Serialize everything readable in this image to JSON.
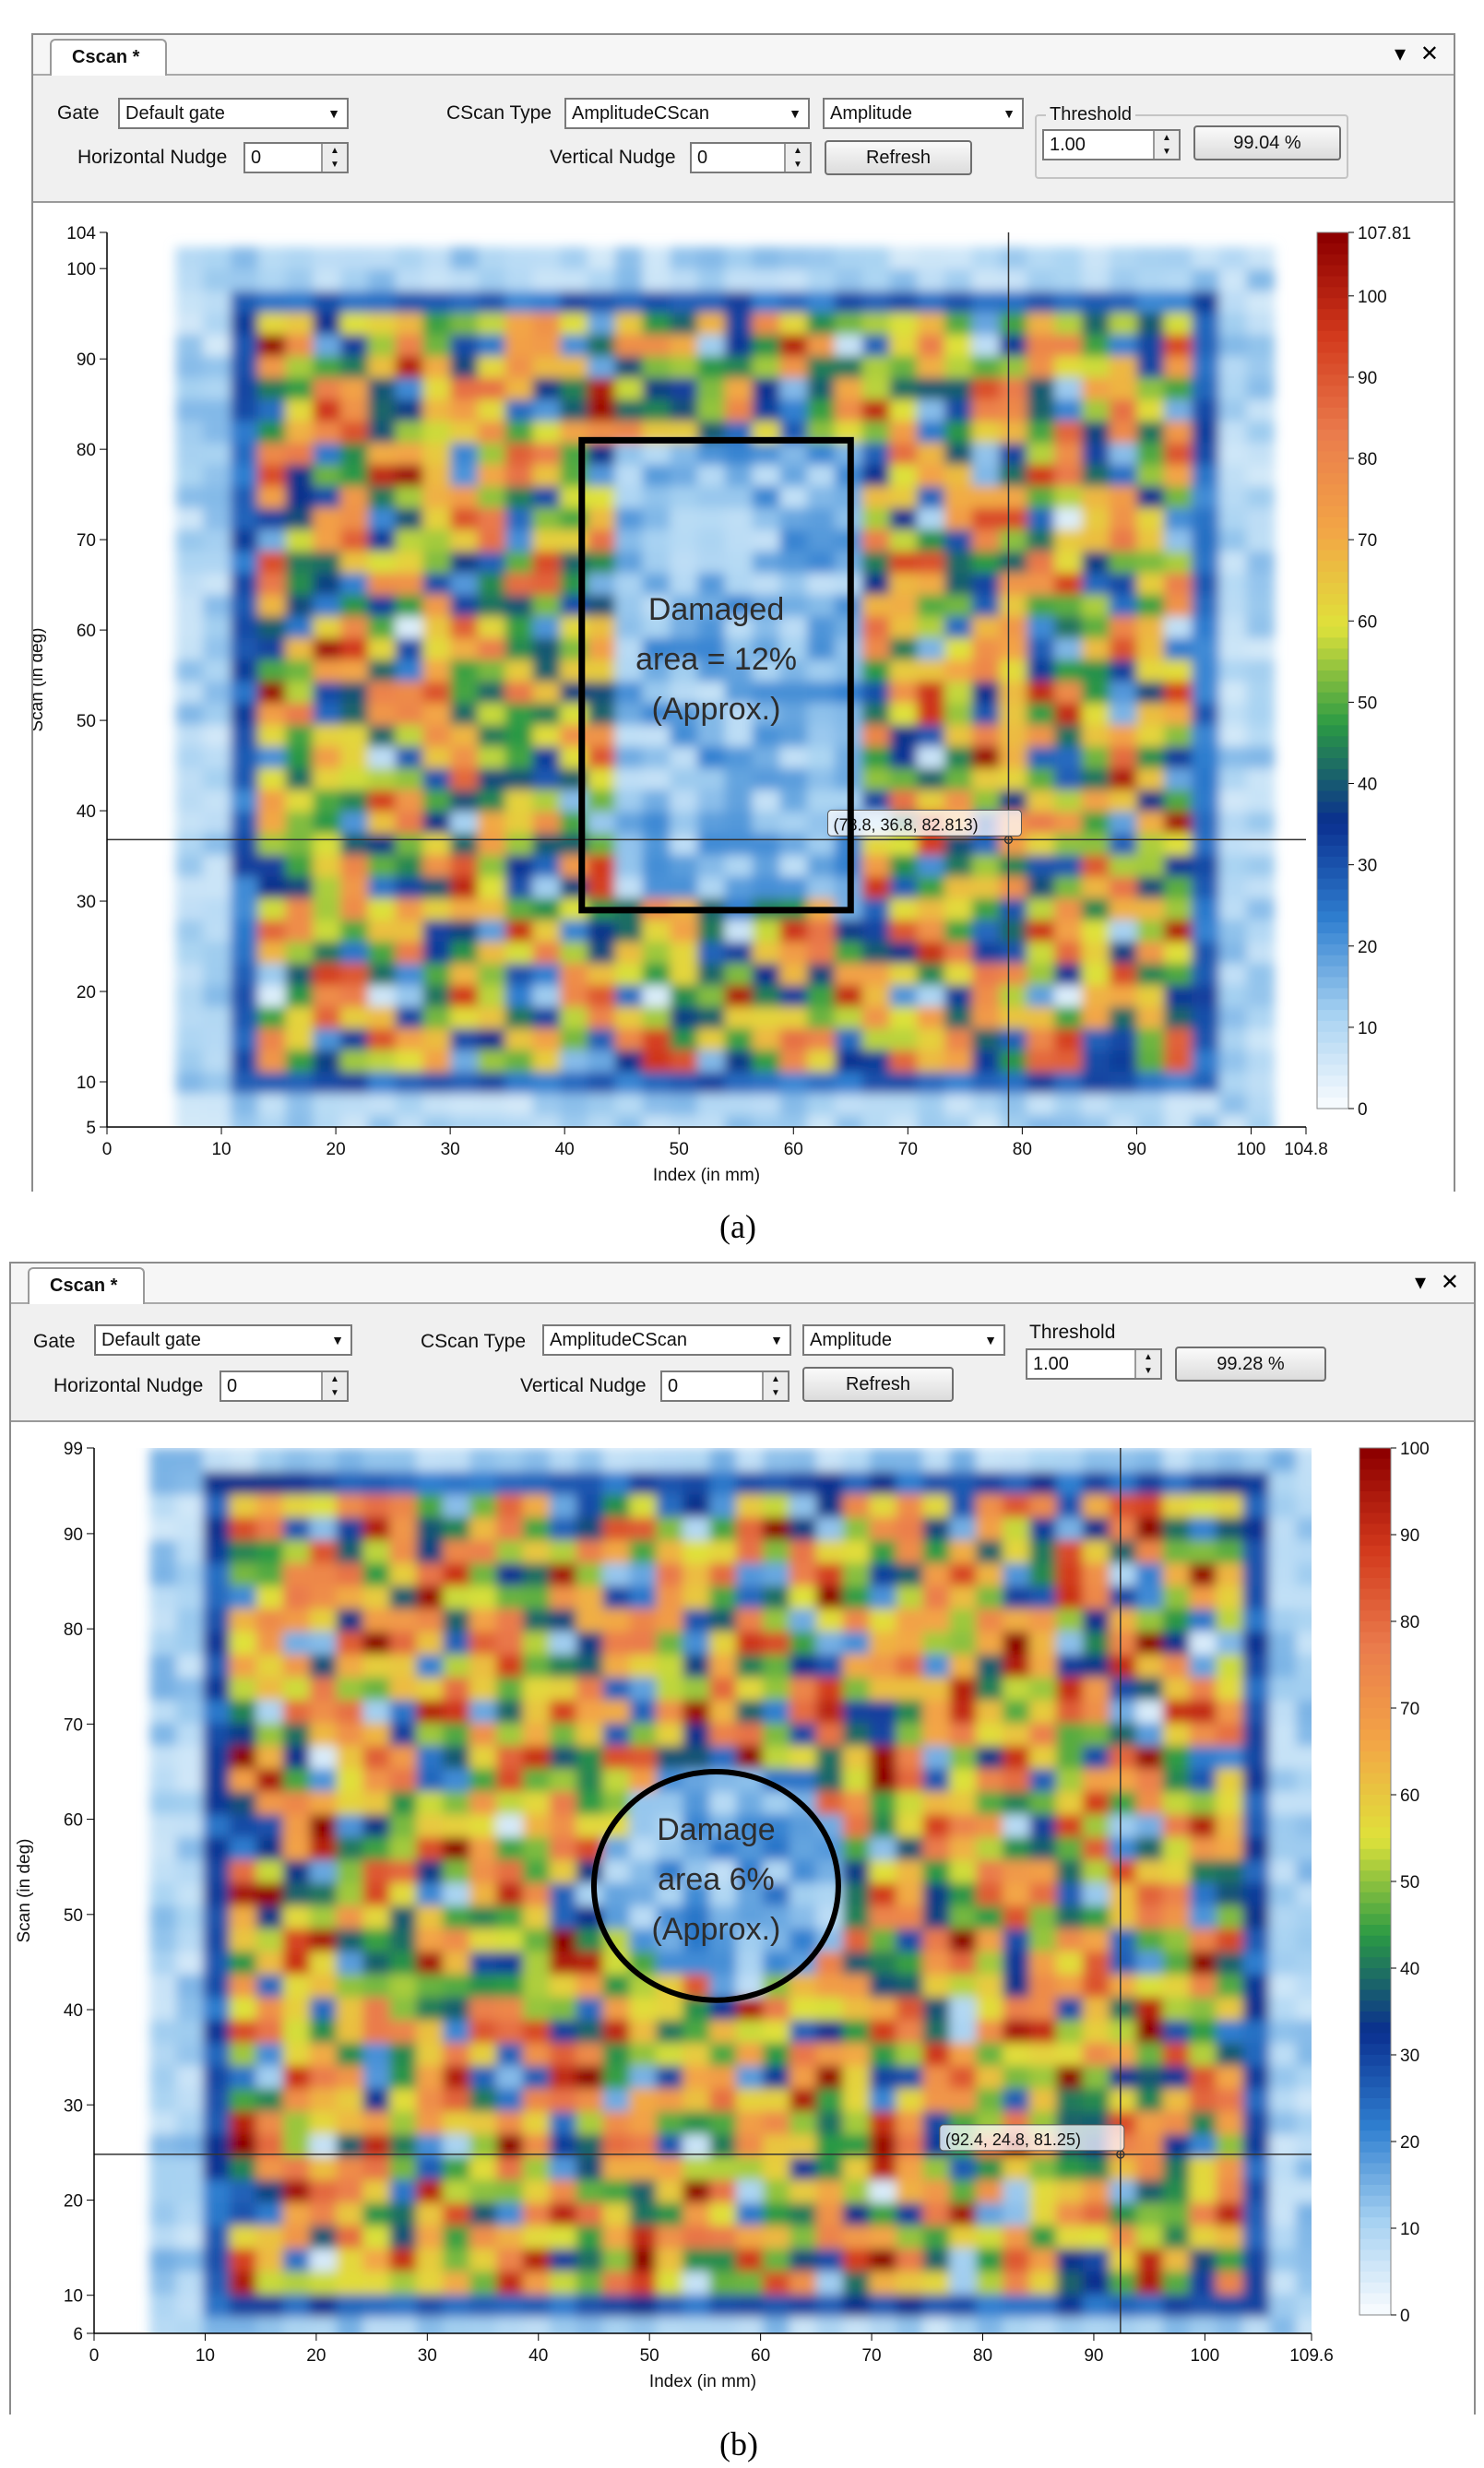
{
  "panels": [
    {
      "tab_title": "Cscan *",
      "gate_label": "Gate",
      "gate_value": "Default gate",
      "cscan_type_label": "CScan Type",
      "cscan_type_value": "AmplitudeCScan",
      "mode_value": "Amplitude",
      "threshold_label": "Threshold",
      "threshold_value": "1.00",
      "threshold_percent": "99.04 %",
      "hnudge_label": "Horizontal Nudge",
      "hnudge_value": "0",
      "vnudge_label": "Vertical Nudge",
      "vnudge_value": "0",
      "refresh_label": "Refresh",
      "x_axis_label": "Index (in mm)",
      "y_axis_label": "Scan (in deg)",
      "cursor_readout": "(78.8, 36.8, 82.813)",
      "annotation_lines": [
        "Damaged",
        "area = 12%",
        "(Approx.)"
      ],
      "caption": "(a)"
    },
    {
      "tab_title": "Cscan *",
      "gate_label": "Gate",
      "gate_value": "Default gate",
      "cscan_type_label": "CScan Type",
      "cscan_type_value": "AmplitudeCScan",
      "mode_value": "Amplitude",
      "threshold_label": "Threshold",
      "threshold_value": "1.00",
      "threshold_percent": "99.28 %",
      "hnudge_label": "Horizontal Nudge",
      "hnudge_value": "0",
      "vnudge_label": "Vertical Nudge",
      "vnudge_value": "0",
      "refresh_label": "Refresh",
      "x_axis_label": "Index (in mm)",
      "y_axis_label": "Scan (in deg)",
      "cursor_readout": "(92.4, 24.8, 81.25)",
      "annotation_lines": [
        "Damage",
        "area 6%",
        "(Approx.)"
      ],
      "caption": "(b)"
    }
  ],
  "window_controls": {
    "dropdown_glyph": "▾",
    "close_glyph": "✕"
  },
  "icons": {
    "combo_arrow": "chevron-down-icon",
    "spin": "spin-arrows-icon",
    "close": "close-icon"
  },
  "colorscale": [
    "#ffffff",
    "#a9d3f2",
    "#2f7fd0",
    "#0a2f8f",
    "#2b9a44",
    "#dfe23a",
    "#f3a546",
    "#ea7b4c",
    "#d2391c",
    "#8e0000"
  ],
  "chart_data": [
    {
      "type": "heatmap",
      "xlabel": "Index (in mm)",
      "ylabel": "Scan (in deg)",
      "xlim": [
        0,
        104.8
      ],
      "ylim": [
        5,
        104
      ],
      "x_ticks": [
        0,
        10,
        20,
        30,
        40,
        50,
        60,
        70,
        80,
        90,
        100,
        104.8
      ],
      "y_ticks": [
        5,
        10,
        20,
        30,
        40,
        50,
        60,
        70,
        80,
        90,
        100,
        104
      ],
      "colorbar": {
        "min": 0,
        "max": 107.81,
        "ticks": [
          0,
          10,
          20,
          30,
          40,
          50,
          60,
          70,
          80,
          90,
          100,
          107.81
        ]
      },
      "specimen_extent": {
        "x": [
          10,
          96
        ],
        "y": [
          8,
          97
        ]
      },
      "damage_region": {
        "shape": "rectangle",
        "x": [
          41.5,
          65
        ],
        "y": [
          29,
          81
        ]
      },
      "cursor": {
        "x": 78.8,
        "y": 36.8,
        "value": 82.813
      }
    },
    {
      "type": "heatmap",
      "xlabel": "Index (in mm)",
      "ylabel": "Scan (in deg)",
      "xlim": [
        0,
        109.6
      ],
      "ylim": [
        6,
        99
      ],
      "x_ticks": [
        0,
        10,
        20,
        30,
        40,
        50,
        60,
        70,
        80,
        90,
        100,
        109.6
      ],
      "y_ticks": [
        6,
        10,
        20,
        30,
        40,
        50,
        60,
        70,
        80,
        90,
        99
      ],
      "colorbar": {
        "min": 0,
        "max": 100,
        "ticks": [
          0,
          10,
          20,
          30,
          40,
          50,
          60,
          70,
          80,
          90,
          100
        ]
      },
      "specimen_extent": {
        "x": [
          9,
          105
        ],
        "y": [
          7,
          95
        ]
      },
      "damage_region": {
        "shape": "circle",
        "center": [
          56,
          53
        ],
        "radius_x": 11,
        "radius_y": 12
      },
      "cursor": {
        "x": 92.4,
        "y": 24.8,
        "value": 81.25
      }
    }
  ]
}
